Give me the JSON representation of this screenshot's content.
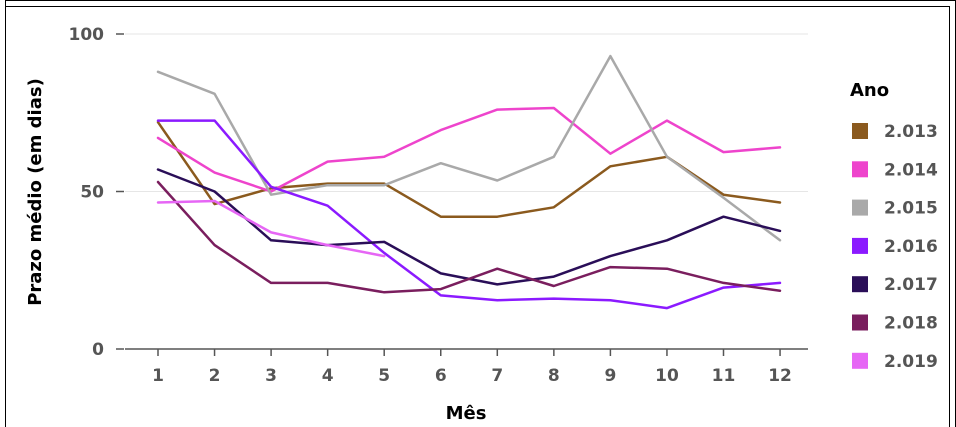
{
  "chart_data": {
    "type": "line",
    "xlabel": "Mês",
    "ylabel": "Prazo médio (em dias)",
    "x": [
      1,
      2,
      3,
      4,
      5,
      6,
      7,
      8,
      9,
      10,
      11,
      12
    ],
    "x_ticks": [
      "1",
      "2",
      "3",
      "4",
      "5",
      "6",
      "7",
      "8",
      "9",
      "10",
      "11",
      "12"
    ],
    "ylim": [
      0,
      100
    ],
    "y_ticks": [
      "0",
      "50",
      "100"
    ],
    "y_tick_values": [
      0,
      50,
      100
    ],
    "grid": true,
    "legend": {
      "title": "Ano",
      "placement": "right"
    },
    "series": [
      {
        "name": "2.013",
        "color": "#8B5A1E",
        "values": [
          72,
          46,
          51,
          52.5,
          52.5,
          42,
          42,
          45,
          58,
          61,
          49,
          46.5
        ]
      },
      {
        "name": "2.014",
        "color": "#EE44CC",
        "values": [
          67,
          56,
          50,
          59.5,
          61,
          69.5,
          76,
          76.5,
          62,
          72.5,
          62.5,
          64
        ]
      },
      {
        "name": "2.015",
        "color": "#A9A9A9",
        "values": [
          88,
          81,
          49,
          52,
          52,
          59,
          53.5,
          61,
          93,
          61,
          48,
          34.5
        ]
      },
      {
        "name": "2.016",
        "color": "#8B1AFF",
        "values": [
          72.5,
          72.5,
          51.5,
          45.5,
          30.5,
          17,
          15.5,
          16,
          15.5,
          13,
          19.5,
          21
        ]
      },
      {
        "name": "2.017",
        "color": "#2A0E58",
        "values": [
          57,
          50,
          34.5,
          33,
          34,
          24,
          20.5,
          23,
          29.5,
          34.5,
          42,
          37.5
        ]
      },
      {
        "name": "2.018",
        "color": "#7A1E5E",
        "values": [
          53,
          33,
          21,
          21,
          18,
          19,
          25.5,
          20,
          26,
          25.5,
          21,
          18.5
        ]
      },
      {
        "name": "2.019",
        "color": "#E666F5",
        "values": [
          46.5,
          47,
          37,
          33,
          29.5,
          null,
          null,
          null,
          null,
          null,
          null,
          null
        ]
      }
    ]
  }
}
